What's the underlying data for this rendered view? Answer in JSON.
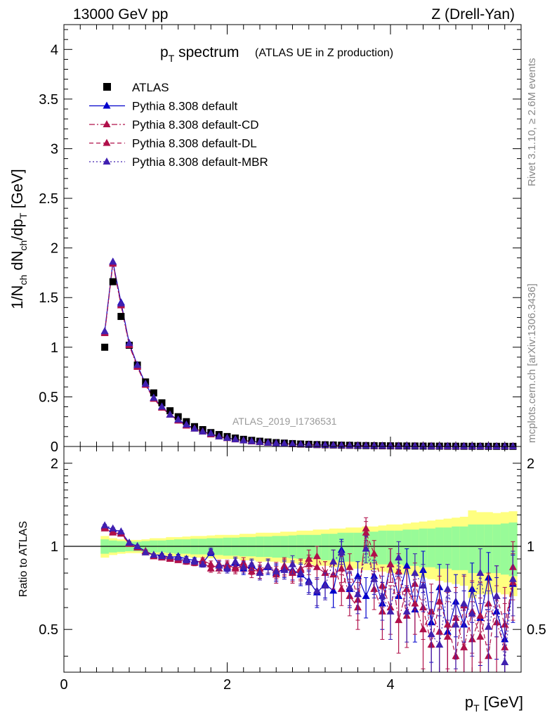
{
  "header": {
    "left": "13000 GeV pp",
    "right": "Z (Drell-Yan)"
  },
  "title": {
    "main": "p",
    "main_sub": "T",
    "main_rest": " spectrum",
    "note": "(ATLAS UE in Z production)"
  },
  "side_text": {
    "rivet": "Rivet 3.1.10, ≥ 2.6M events",
    "site": "mcplots.cern.ch [arXiv:1306.3436]"
  },
  "analysis_id": "ATLAS_2019_I1736531",
  "chart_data": [
    {
      "type": "scatter",
      "ylabel": "1/N_ch dN_ch/dp_T [GeV]",
      "xlim": [
        0,
        5.6
      ],
      "ylim": [
        0,
        4.25
      ],
      "yticks": [
        "0",
        "0.5",
        "1",
        "1.5",
        "2",
        "2.5",
        "3",
        "3.5",
        "4"
      ],
      "grid": false,
      "legend_position": "top-left",
      "x": [
        0.5,
        0.6,
        0.7,
        0.8,
        0.9,
        1.0,
        1.1,
        1.2,
        1.3,
        1.4,
        1.5,
        1.6,
        1.7,
        1.8,
        1.9,
        2.0,
        2.1,
        2.2,
        2.3,
        2.4,
        2.5,
        2.6,
        2.7,
        2.8,
        2.9,
        3.0,
        3.1,
        3.2,
        3.3,
        3.4,
        3.5,
        3.6,
        3.7,
        3.8,
        3.9,
        4.0,
        4.1,
        4.2,
        4.3,
        4.4,
        4.5,
        4.6,
        4.7,
        4.8,
        4.9,
        5.0,
        5.1,
        5.2,
        5.3,
        5.4,
        5.5
      ],
      "series": [
        {
          "name": "ATLAS",
          "color": "#000000",
          "marker": "square",
          "values": [
            1.0,
            1.66,
            1.31,
            1.02,
            0.82,
            0.65,
            0.54,
            0.44,
            0.36,
            0.3,
            0.25,
            0.2,
            0.17,
            0.14,
            0.12,
            0.1,
            0.085,
            0.072,
            0.062,
            0.053,
            0.045,
            0.039,
            0.034,
            0.029,
            0.025,
            0.022,
            0.019,
            0.017,
            0.015,
            0.013,
            0.012,
            0.01,
            0.009,
            0.008,
            0.0072,
            0.0064,
            0.0057,
            0.0051,
            0.0046,
            0.0041,
            0.0037,
            0.0033,
            0.003,
            0.0027,
            0.0024,
            0.0022,
            0.002,
            0.0018,
            0.0016,
            0.0015,
            0.0013
          ]
        },
        {
          "name": "Pythia 8.308 default",
          "color": "#0000cc",
          "marker": "triangle",
          "line": "solid",
          "values": [
            1.16,
            1.86,
            1.45,
            1.04,
            0.82,
            0.63,
            0.49,
            0.4,
            0.32,
            0.27,
            0.22,
            0.18,
            0.15,
            0.13,
            0.1,
            0.085,
            0.072,
            0.06,
            0.052,
            0.044,
            0.037,
            0.032,
            0.028,
            0.024,
            0.021,
            0.018,
            0.016,
            0.014,
            0.012,
            0.011,
            0.0095,
            0.0083,
            0.0074,
            0.0065,
            0.0058,
            0.0051,
            0.0045,
            0.004,
            0.0036,
            0.0032,
            0.0029,
            0.0026,
            0.0023,
            0.0021,
            0.0019,
            0.0017,
            0.0015,
            0.0014,
            0.0012,
            0.0011,
            0.001
          ]
        },
        {
          "name": "Pythia 8.308 default-CD",
          "color": "#b0104a",
          "marker": "triangle",
          "line": "dashdot",
          "values": [
            1.14,
            1.84,
            1.42,
            1.02,
            0.8,
            0.62,
            0.48,
            0.39,
            0.32,
            0.26,
            0.21,
            0.18,
            0.15,
            0.12,
            0.1,
            0.083,
            0.07,
            0.059,
            0.05,
            0.043,
            0.036,
            0.031,
            0.027,
            0.023,
            0.02,
            0.018,
            0.015,
            0.013,
            0.012,
            0.01,
            0.0092,
            0.0081,
            0.0072,
            0.0063,
            0.0056,
            0.005,
            0.0044,
            0.0039,
            0.0035,
            0.0031,
            0.0028,
            0.0025,
            0.0022,
            0.002,
            0.0018,
            0.0016,
            0.0015,
            0.0013,
            0.0012,
            0.0011,
            0.001
          ]
        },
        {
          "name": "Pythia 8.308 default-DL",
          "color": "#b0104a",
          "marker": "triangle",
          "line": "dashed",
          "values": [
            1.15,
            1.85,
            1.43,
            1.03,
            0.81,
            0.62,
            0.48,
            0.39,
            0.32,
            0.26,
            0.21,
            0.18,
            0.15,
            0.12,
            0.1,
            0.084,
            0.071,
            0.06,
            0.051,
            0.043,
            0.037,
            0.031,
            0.027,
            0.023,
            0.02,
            0.018,
            0.015,
            0.013,
            0.012,
            0.01,
            0.0093,
            0.0082,
            0.0072,
            0.0064,
            0.0057,
            0.005,
            0.0044,
            0.0039,
            0.0035,
            0.0031,
            0.0028,
            0.0025,
            0.0022,
            0.002,
            0.0018,
            0.0016,
            0.0015,
            0.0013,
            0.0012,
            0.0011,
            0.001
          ]
        },
        {
          "name": "Pythia 8.308 default-MBR",
          "color": "#4020b0",
          "marker": "triangle",
          "line": "dotted",
          "values": [
            1.16,
            1.86,
            1.44,
            1.04,
            0.82,
            0.63,
            0.49,
            0.4,
            0.32,
            0.27,
            0.22,
            0.18,
            0.15,
            0.13,
            0.1,
            0.085,
            0.072,
            0.06,
            0.052,
            0.044,
            0.037,
            0.032,
            0.028,
            0.024,
            0.021,
            0.018,
            0.016,
            0.014,
            0.012,
            0.011,
            0.0095,
            0.0083,
            0.0074,
            0.0065,
            0.0058,
            0.0051,
            0.0045,
            0.004,
            0.0036,
            0.0032,
            0.0029,
            0.0026,
            0.0023,
            0.0021,
            0.0019,
            0.0017,
            0.0015,
            0.0014,
            0.0012,
            0.0011,
            0.001
          ]
        }
      ]
    },
    {
      "type": "scatter",
      "ylabel": "Ratio to ATLAS",
      "xlabel": "p_T [GeV]",
      "xlim": [
        0,
        5.6
      ],
      "xticks": [
        "0",
        "2",
        "4"
      ],
      "ylim": [
        0.35,
        2.3
      ],
      "yticks": [
        "0.5",
        "1",
        "2"
      ],
      "log_y": true,
      "reference_line": 1,
      "x": [
        0.5,
        0.6,
        0.7,
        0.8,
        0.9,
        1.0,
        1.1,
        1.2,
        1.3,
        1.4,
        1.5,
        1.6,
        1.7,
        1.8,
        1.9,
        2.0,
        2.1,
        2.2,
        2.3,
        2.4,
        2.5,
        2.6,
        2.7,
        2.8,
        2.9,
        3.0,
        3.1,
        3.2,
        3.3,
        3.4,
        3.5,
        3.6,
        3.7,
        3.8,
        3.9,
        4.0,
        4.1,
        4.2,
        4.3,
        4.4,
        4.5,
        4.6,
        4.7,
        4.8,
        4.9,
        5.0,
        5.1,
        5.2,
        5.3,
        5.4,
        5.5
      ],
      "bands": {
        "inner_color": "#98fb98",
        "outer_color": "#ffff80",
        "inner_halfwidth": [
          0.06,
          0.05,
          0.045,
          0.04,
          0.04,
          0.045,
          0.05,
          0.05,
          0.055,
          0.06,
          0.06,
          0.065,
          0.065,
          0.07,
          0.07,
          0.075,
          0.075,
          0.08,
          0.08,
          0.085,
          0.085,
          0.09,
          0.09,
          0.095,
          0.1,
          0.1,
          0.1,
          0.11,
          0.11,
          0.12,
          0.12,
          0.12,
          0.13,
          0.13,
          0.14,
          0.14,
          0.14,
          0.15,
          0.15,
          0.16,
          0.16,
          0.17,
          0.17,
          0.18,
          0.18,
          0.2,
          0.2,
          0.2,
          0.2,
          0.21,
          0.22
        ],
        "outer_halfwidth": [
          0.09,
          0.07,
          0.06,
          0.055,
          0.055,
          0.06,
          0.07,
          0.07,
          0.08,
          0.08,
          0.085,
          0.09,
          0.09,
          0.095,
          0.1,
          0.1,
          0.1,
          0.11,
          0.11,
          0.12,
          0.12,
          0.12,
          0.13,
          0.13,
          0.14,
          0.14,
          0.15,
          0.15,
          0.16,
          0.16,
          0.17,
          0.17,
          0.18,
          0.18,
          0.19,
          0.2,
          0.2,
          0.21,
          0.22,
          0.23,
          0.24,
          0.25,
          0.26,
          0.27,
          0.28,
          0.35,
          0.33,
          0.33,
          0.32,
          0.33,
          0.34
        ]
      },
      "series": [
        {
          "name": "Pythia 8.308 default",
          "color": "#0000cc",
          "line": "solid",
          "values": [
            1.18,
            1.15,
            1.13,
            1.03,
            1.0,
            0.96,
            0.93,
            0.93,
            0.91,
            0.92,
            0.9,
            0.89,
            0.87,
            0.95,
            0.86,
            0.84,
            0.87,
            0.83,
            0.85,
            0.81,
            0.84,
            0.8,
            0.83,
            0.82,
            0.79,
            0.75,
            0.68,
            0.73,
            0.69,
            0.97,
            0.7,
            0.78,
            0.66,
            0.78,
            0.62,
            0.86,
            0.66,
            0.85,
            0.59,
            0.82,
            0.53,
            0.71,
            0.49,
            0.63,
            0.52,
            0.7,
            0.55,
            0.77,
            0.58,
            0.46,
            0.73
          ],
          "errors": [
            0.01,
            0.01,
            0.01,
            0.01,
            0.01,
            0.01,
            0.01,
            0.01,
            0.015,
            0.015,
            0.02,
            0.02,
            0.02,
            0.025,
            0.03,
            0.03,
            0.035,
            0.04,
            0.04,
            0.045,
            0.05,
            0.055,
            0.06,
            0.065,
            0.07,
            0.07,
            0.08,
            0.08,
            0.09,
            0.09,
            0.1,
            0.1,
            0.11,
            0.11,
            0.12,
            0.12,
            0.13,
            0.13,
            0.14,
            0.14,
            0.15,
            0.15,
            0.16,
            0.16,
            0.17,
            0.17,
            0.18,
            0.18,
            0.19,
            0.19,
            0.2
          ]
        },
        {
          "name": "Pythia 8.308 default-CD",
          "color": "#b0104a",
          "line": "dashdot",
          "values": [
            1.16,
            1.12,
            1.11,
            1.02,
            0.99,
            0.96,
            0.92,
            0.91,
            0.9,
            0.9,
            0.88,
            0.88,
            0.88,
            0.83,
            0.86,
            0.85,
            0.84,
            0.87,
            0.81,
            0.83,
            0.85,
            0.79,
            0.85,
            0.81,
            0.83,
            0.86,
            0.84,
            0.8,
            0.79,
            0.83,
            0.66,
            0.6,
            1.16,
            0.7,
            0.58,
            0.86,
            0.54,
            0.7,
            0.62,
            0.5,
            0.58,
            0.49,
            0.47,
            0.55,
            0.43,
            0.58,
            0.47,
            0.62,
            0.53,
            0.43,
            0.84
          ],
          "errors": [
            0.01,
            0.01,
            0.01,
            0.01,
            0.01,
            0.01,
            0.01,
            0.01,
            0.015,
            0.015,
            0.02,
            0.02,
            0.02,
            0.025,
            0.03,
            0.03,
            0.035,
            0.04,
            0.04,
            0.045,
            0.05,
            0.055,
            0.06,
            0.065,
            0.07,
            0.07,
            0.08,
            0.08,
            0.09,
            0.09,
            0.1,
            0.1,
            0.11,
            0.11,
            0.12,
            0.12,
            0.13,
            0.13,
            0.14,
            0.14,
            0.15,
            0.15,
            0.16,
            0.16,
            0.17,
            0.17,
            0.18,
            0.18,
            0.19,
            0.19,
            0.2
          ]
        },
        {
          "name": "Pythia 8.308 default-DL",
          "color": "#b0104a",
          "line": "dashed",
          "values": [
            1.17,
            1.13,
            1.12,
            1.02,
            0.99,
            0.95,
            0.92,
            0.92,
            0.91,
            0.89,
            0.89,
            0.87,
            0.89,
            0.86,
            0.83,
            0.86,
            0.83,
            0.85,
            0.83,
            0.81,
            0.85,
            0.82,
            0.84,
            0.8,
            0.82,
            0.9,
            0.92,
            0.8,
            0.88,
            0.7,
            0.84,
            0.64,
            1.12,
            0.94,
            0.72,
            0.6,
            0.81,
            0.56,
            0.73,
            0.6,
            0.44,
            0.63,
            0.52,
            0.4,
            0.61,
            0.46,
            0.56,
            0.4,
            0.66,
            0.52,
            0.74
          ],
          "errors": [
            0.01,
            0.01,
            0.01,
            0.01,
            0.01,
            0.01,
            0.01,
            0.01,
            0.015,
            0.015,
            0.02,
            0.02,
            0.02,
            0.025,
            0.03,
            0.03,
            0.035,
            0.04,
            0.04,
            0.045,
            0.05,
            0.055,
            0.06,
            0.065,
            0.07,
            0.07,
            0.08,
            0.08,
            0.09,
            0.09,
            0.1,
            0.1,
            0.11,
            0.11,
            0.12,
            0.12,
            0.13,
            0.13,
            0.14,
            0.14,
            0.15,
            0.15,
            0.16,
            0.16,
            0.17,
            0.17,
            0.18,
            0.18,
            0.19,
            0.19,
            0.2
          ]
        },
        {
          "name": "Pythia 8.308 default-MBR",
          "color": "#4020b0",
          "line": "dotted",
          "values": [
            1.19,
            1.16,
            1.13,
            1.03,
            1.0,
            0.95,
            0.93,
            0.92,
            0.92,
            0.91,
            0.89,
            0.88,
            0.86,
            0.96,
            0.85,
            0.83,
            0.88,
            0.84,
            0.86,
            0.8,
            0.85,
            0.81,
            0.82,
            0.86,
            0.8,
            0.74,
            0.69,
            0.72,
            0.88,
            0.95,
            0.71,
            0.67,
            0.98,
            0.76,
            0.66,
            0.58,
            0.91,
            0.58,
            0.8,
            0.72,
            0.48,
            0.44,
            0.7,
            0.52,
            0.62,
            0.57,
            0.8,
            0.51,
            0.66,
            0.38,
            0.76
          ],
          "errors": [
            0.01,
            0.01,
            0.01,
            0.01,
            0.01,
            0.01,
            0.01,
            0.01,
            0.015,
            0.015,
            0.02,
            0.02,
            0.02,
            0.025,
            0.03,
            0.03,
            0.035,
            0.04,
            0.04,
            0.045,
            0.05,
            0.055,
            0.06,
            0.065,
            0.07,
            0.07,
            0.08,
            0.08,
            0.09,
            0.09,
            0.1,
            0.1,
            0.11,
            0.11,
            0.12,
            0.12,
            0.13,
            0.13,
            0.14,
            0.14,
            0.15,
            0.15,
            0.16,
            0.16,
            0.17,
            0.17,
            0.18,
            0.18,
            0.19,
            0.19,
            0.2
          ]
        }
      ]
    }
  ]
}
